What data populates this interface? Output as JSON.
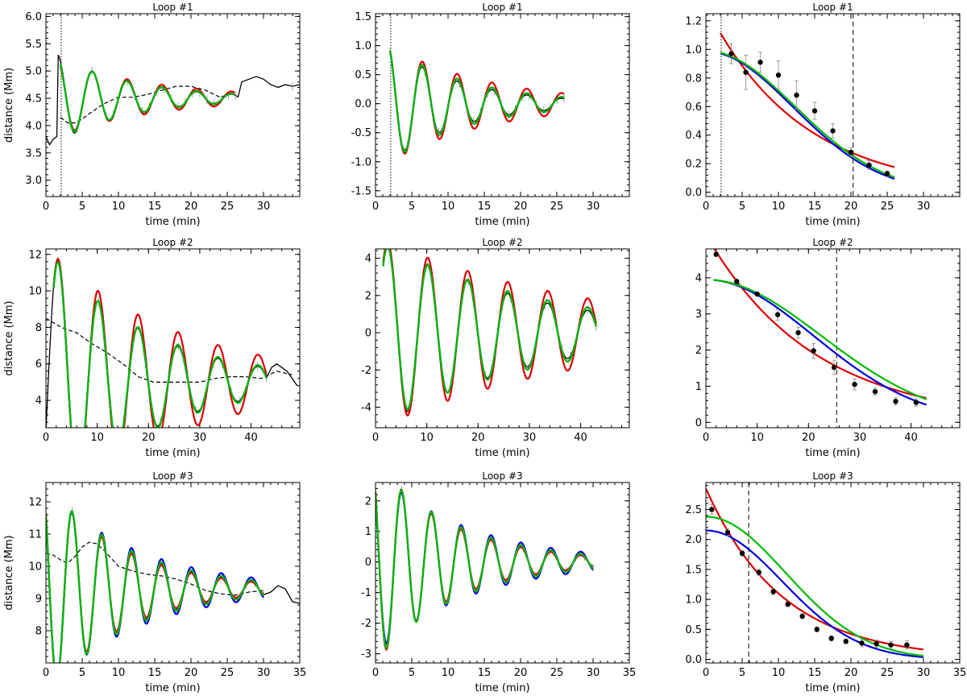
{
  "chart_data": [
    {
      "title": "Loop #1",
      "type": "line",
      "xlabel": "time (min)",
      "ylabel": "distance (Mm)",
      "xlim": [
        0,
        35
      ],
      "ylim": [
        2.7,
        6.05
      ],
      "xticks": [
        0,
        5,
        10,
        15,
        20,
        25,
        30
      ],
      "yticks": [
        3.0,
        3.5,
        4.0,
        4.5,
        5.0,
        5.5,
        6.0
      ],
      "ytickfmt": 1,
      "ref": {
        "x": 2.1,
        "style": "dotted"
      },
      "background": {
        "x": [
          2,
          3,
          4,
          5,
          6,
          8,
          10,
          12,
          14,
          16,
          18,
          20,
          22,
          24,
          26
        ],
        "y": [
          4.15,
          4.05,
          4.05,
          4.12,
          4.22,
          4.4,
          4.52,
          4.52,
          4.57,
          4.65,
          4.72,
          4.72,
          4.65,
          4.52,
          4.6
        ]
      },
      "series": [
        {
          "name": "red fit",
          "color": "#dd0000",
          "kind": "osc",
          "x": [
            2,
            26
          ],
          "y0": 4.5,
          "A0": 0.78,
          "P": 4.8,
          "tau": 14,
          "phi": -2.1
        },
        {
          "name": "blue fit",
          "color": "#0000dd",
          "kind": "osc",
          "x": [
            2,
            26
          ],
          "y0": 4.5,
          "A0": 0.88,
          "P": 4.8,
          "tau": 11,
          "phi": -2.1
        },
        {
          "name": "green fit",
          "color": "#00bb00",
          "kind": "osc",
          "x": [
            2,
            26
          ],
          "y0": 4.5,
          "A0": 0.88,
          "P": 4.8,
          "tau": 11,
          "phi": -2.1
        },
        {
          "name": "data",
          "color": "#000000",
          "kind": "osc",
          "x": [
            0,
            35
          ],
          "y0": 4.5,
          "A0": 0.95,
          "P": 4.8,
          "tau": 10,
          "phi": -2.1,
          "pre": [
            [
              0,
              3.8
            ],
            [
              0.5,
              3.65
            ],
            [
              1,
              3.75
            ],
            [
              1.5,
              3.8
            ]
          ],
          "post": [
            [
              27,
              4.8
            ],
            [
              28,
              4.85
            ],
            [
              29,
              4.9
            ],
            [
              30,
              4.85
            ],
            [
              31,
              4.75
            ],
            [
              32,
              4.7
            ],
            [
              33,
              4.75
            ],
            [
              34,
              4.72
            ],
            [
              35,
              4.75
            ]
          ]
        }
      ]
    },
    {
      "title": "Loop #1",
      "type": "line",
      "xlabel": "time (min)",
      "ylabel": "",
      "xlim": [
        0,
        35
      ],
      "ylim": [
        -1.6,
        1.55
      ],
      "xticks": [
        0,
        5,
        10,
        15,
        20,
        25,
        30
      ],
      "yticks": [
        -1.5,
        -1.0,
        -0.5,
        0.0,
        0.5,
        1.0,
        1.5
      ],
      "ytickfmt": 1,
      "ref": {
        "x": 2.1,
        "style": "dotted"
      },
      "series": [
        {
          "name": "red fit",
          "color": "#dd0000",
          "kind": "osc",
          "x": [
            2,
            26
          ],
          "y0": 0,
          "A0": 1.15,
          "P": 4.8,
          "tau": 14,
          "phi": -2.2
        },
        {
          "name": "blue fit",
          "color": "#0000dd",
          "kind": "osc",
          "x": [
            2,
            26
          ],
          "y0": 0,
          "A0": 1.2,
          "P": 4.8,
          "tau": 11,
          "phi": -2.2
        },
        {
          "name": "green fit",
          "color": "#00bb00",
          "kind": "osc",
          "x": [
            2,
            26
          ],
          "y0": 0,
          "A0": 1.2,
          "P": 4.8,
          "tau": 11,
          "phi": -2.2
        },
        {
          "name": "data",
          "color": "#000000",
          "kind": "osc",
          "x": [
            2,
            26
          ],
          "y0": 0,
          "A0": 1.2,
          "P": 4.8,
          "tau": 10,
          "phi": -2.2
        }
      ]
    },
    {
      "title": "Loop #1",
      "type": "scatter",
      "xlabel": "time (min)",
      "ylabel": "",
      "xlim": [
        0,
        35
      ],
      "ylim": [
        -0.03,
        1.25
      ],
      "xticks": [
        0,
        5,
        10,
        15,
        20,
        25,
        30
      ],
      "yticks": [
        0.0,
        0.2,
        0.4,
        0.6,
        0.8,
        1.0,
        1.2
      ],
      "ytickfmt": 1,
      "ref": {
        "x": 20.3,
        "style": "dashed"
      },
      "ref2": {
        "x": 2.1,
        "style": "dotted"
      },
      "points": {
        "x": [
          3.5,
          5.5,
          7.5,
          10,
          12.5,
          15,
          17.5,
          20,
          22.5,
          25
        ],
        "y": [
          0.97,
          0.84,
          0.91,
          0.82,
          0.68,
          0.57,
          0.43,
          0.28,
          0.19,
          0.13
        ],
        "err": [
          0.07,
          0.12,
          0.07,
          0.1,
          0.1,
          0.06,
          0.05,
          0.03,
          0.03,
          0.02
        ]
      },
      "series": [
        {
          "name": "red fit",
          "color": "#dd0000",
          "kind": "exp",
          "x": [
            2,
            26
          ],
          "A": 1.3,
          "tau": 13
        },
        {
          "name": "blue fit",
          "color": "#0000dd",
          "kind": "gauss",
          "x": [
            2,
            26
          ],
          "A": 0.985,
          "sigma": 12,
          "t0": 0
        },
        {
          "name": "green fit",
          "color": "#00bb00",
          "kind": "gauss",
          "x": [
            2,
            26
          ],
          "A": 0.99,
          "sigma": 12.3,
          "t0": 0
        }
      ]
    },
    {
      "title": "Loop #2",
      "type": "line",
      "xlabel": "time (min)",
      "ylabel": "distance (Mm)",
      "xlim": [
        0,
        49.5
      ],
      "ylim": [
        2.5,
        12.3
      ],
      "xticks": [
        0,
        10,
        20,
        30,
        40
      ],
      "yticks": [
        4,
        6,
        8,
        10,
        12
      ],
      "ytickfmt": 0,
      "background": {
        "x": [
          0,
          3,
          6,
          9,
          12,
          15,
          18,
          21,
          24,
          27,
          30,
          33,
          36,
          39,
          42,
          45,
          48
        ],
        "y": [
          8.5,
          8.0,
          7.7,
          7.1,
          6.6,
          6.0,
          5.3,
          5.0,
          5.0,
          5.0,
          5.0,
          5.2,
          5.3,
          5.3,
          5.2,
          5.6,
          5.4
        ]
      },
      "series": [
        {
          "name": "red fit",
          "color": "#dd0000",
          "kind": "osc",
          "x": [
            1.5,
            43
          ],
          "y0": 5,
          "A0": 7.4,
          "P": 7.8,
          "tau": 26,
          "phi": -1.93
        },
        {
          "name": "blue fit",
          "color": "#0000dd",
          "kind": "osc",
          "x": [
            1.5,
            43
          ],
          "y0": 5,
          "A0": 7.4,
          "P": 7.8,
          "tau": 20,
          "phi": -1.93
        },
        {
          "name": "green fit",
          "color": "#00bb00",
          "kind": "osc",
          "x": [
            1.5,
            43
          ],
          "y0": 5,
          "A0": 7.4,
          "P": 7.8,
          "tau": 20,
          "phi": -1.93
        },
        {
          "name": "data",
          "color": "#000000",
          "kind": "osc",
          "x": [
            0,
            43
          ],
          "y0": 5,
          "A0": 7.6,
          "P": 7.8,
          "tau": 19,
          "phi": -1.93,
          "post": [
            [
              44,
              5.8
            ],
            [
              45,
              6.0
            ],
            [
              46,
              5.8
            ],
            [
              47,
              5.6
            ],
            [
              48,
              5.2
            ],
            [
              49,
              4.8
            ]
          ]
        }
      ]
    },
    {
      "title": "Loop #2",
      "type": "line",
      "xlabel": "time (min)",
      "ylabel": "",
      "xlim": [
        0,
        49.5
      ],
      "ylim": [
        -5.1,
        4.5
      ],
      "xticks": [
        0,
        10,
        20,
        30,
        40
      ],
      "yticks": [
        -4,
        -2,
        0,
        2,
        4
      ],
      "ytickfmt": 0,
      "series": [
        {
          "name": "red fit",
          "color": "#dd0000",
          "kind": "osc",
          "x": [
            1.5,
            43
          ],
          "y0": 0,
          "A0": 5.2,
          "P": 7.8,
          "tau": 40,
          "phi": -1.93
        },
        {
          "name": "blue fit",
          "color": "#0000dd",
          "kind": "osc",
          "x": [
            1.5,
            43
          ],
          "y0": 0,
          "A0": 5.0,
          "P": 7.8,
          "tau": 32,
          "phi": -1.93
        },
        {
          "name": "green fit",
          "color": "#00bb00",
          "kind": "osc",
          "x": [
            1.5,
            43
          ],
          "y0": 0,
          "A0": 5.0,
          "P": 7.8,
          "tau": 32,
          "phi": -1.93
        },
        {
          "name": "data",
          "color": "#000000",
          "kind": "osc",
          "x": [
            1.5,
            43
          ],
          "y0": 0,
          "A0": 5.3,
          "P": 7.8,
          "tau": 28,
          "phi": -1.93
        }
      ]
    },
    {
      "title": "Loop #2",
      "type": "scatter",
      "xlabel": "time (min)",
      "ylabel": "",
      "xlim": [
        0,
        49.5
      ],
      "ylim": [
        -0.15,
        4.8
      ],
      "xticks": [
        0,
        10,
        20,
        30,
        40
      ],
      "yticks": [
        0,
        1,
        2,
        3,
        4
      ],
      "ytickfmt": 0,
      "ref": {
        "x": 25.5,
        "style": "dashed"
      },
      "points": {
        "x": [
          2,
          6,
          10,
          14,
          18,
          21,
          25,
          29,
          33,
          37,
          41
        ],
        "y": [
          4.65,
          3.9,
          3.55,
          2.98,
          2.48,
          1.98,
          1.52,
          1.05,
          0.85,
          0.58,
          0.55
        ],
        "err": [
          0.05,
          0.05,
          0.05,
          0.15,
          0.15,
          0.2,
          0.2,
          0.15,
          0.1,
          0.1,
          0.1
        ]
      },
      "series": [
        {
          "name": "red fit",
          "color": "#dd0000",
          "kind": "exp",
          "x": [
            1.5,
            43
          ],
          "A": 5.2,
          "tau": 21
        },
        {
          "name": "blue fit",
          "color": "#0000dd",
          "kind": "gauss",
          "x": [
            1.5,
            43
          ],
          "A": 3.95,
          "sigma": 21,
          "t0": 0
        },
        {
          "name": "green fit",
          "color": "#00bb00",
          "kind": "gauss",
          "x": [
            1.5,
            43
          ],
          "A": 3.95,
          "sigma": 22.5,
          "t0": 0
        }
      ]
    },
    {
      "title": "Loop #3",
      "type": "line",
      "xlabel": "time (min)",
      "ylabel": "distance (Mm)",
      "xlim": [
        0,
        35
      ],
      "ylim": [
        7.0,
        12.6
      ],
      "xticks": [
        0,
        5,
        10,
        15,
        20,
        25,
        30,
        35
      ],
      "yticks": [
        8,
        9,
        10,
        11,
        12
      ],
      "ytickfmt": 0,
      "background": {
        "x": [
          0,
          1,
          2,
          3,
          4,
          5,
          6,
          7,
          8,
          9,
          10,
          12,
          14,
          16,
          18,
          20,
          22,
          24,
          26,
          28,
          30
        ],
        "y": [
          10.4,
          10.35,
          10.2,
          10.1,
          10.3,
          10.6,
          10.75,
          10.7,
          10.5,
          10.25,
          10.0,
          9.85,
          9.75,
          9.7,
          9.6,
          9.45,
          9.25,
          9.15,
          9.1,
          9.2,
          9.25
        ]
      },
      "series": [
        {
          "name": "red fit",
          "color": "#dd0000",
          "kind": "osc",
          "x": [
            0,
            30
          ],
          "y0": 9.3,
          "A0": 3.35,
          "P": 4.12,
          "tau": 10.5,
          "phi": 0.8
        },
        {
          "name": "blue fit",
          "color": "#0000dd",
          "kind": "osc",
          "x": [
            0,
            30
          ],
          "y0": 9.3,
          "A0": 3.15,
          "P": 4.12,
          "tau": 13,
          "phi": 0.8
        },
        {
          "name": "green fit",
          "color": "#00bb00",
          "kind": "osc",
          "x": [
            0,
            30
          ],
          "y0": 9.3,
          "A0": 3.3,
          "P": 4.12,
          "tau": 11.5,
          "phi": 0.8
        },
        {
          "name": "data",
          "color": "#000000",
          "kind": "osc",
          "x": [
            0,
            30
          ],
          "y0": 9.3,
          "A0": 3.35,
          "P": 4.12,
          "tau": 11,
          "phi": 0.8,
          "post": [
            [
              31,
              9.2
            ],
            [
              32,
              9.4
            ],
            [
              33,
              9.3
            ],
            [
              34,
              8.9
            ],
            [
              35,
              8.85
            ]
          ]
        }
      ]
    },
    {
      "title": "Loop #3",
      "type": "line",
      "xlabel": "time (min)",
      "ylabel": "",
      "xlim": [
        0,
        35
      ],
      "ylim": [
        -3.3,
        2.6
      ],
      "xticks": [
        0,
        5,
        10,
        15,
        20,
        25,
        30,
        35
      ],
      "yticks": [
        -3,
        -2,
        -1,
        0,
        1,
        2
      ],
      "ytickfmt": 0,
      "series": [
        {
          "name": "red fit",
          "color": "#dd0000",
          "kind": "osc",
          "x": [
            0,
            30
          ],
          "y0": 0,
          "A0": 3.3,
          "P": 4.12,
          "tau": 10.5,
          "phi": 0.8
        },
        {
          "name": "blue fit",
          "color": "#0000dd",
          "kind": "osc",
          "x": [
            0,
            30
          ],
          "y0": 0,
          "A0": 3.0,
          "P": 4.12,
          "tau": 13,
          "phi": 0.8
        },
        {
          "name": "green fit",
          "color": "#00bb00",
          "kind": "osc",
          "x": [
            0,
            30
          ],
          "y0": 0,
          "A0": 3.2,
          "P": 4.12,
          "tau": 11.5,
          "phi": 0.8
        },
        {
          "name": "data",
          "color": "#000000",
          "kind": "osc",
          "x": [
            0,
            30
          ],
          "y0": 0,
          "A0": 3.3,
          "P": 4.12,
          "tau": 11,
          "phi": 0.8
        }
      ]
    },
    {
      "title": "Loop #3",
      "type": "scatter",
      "xlabel": "time (min)",
      "ylabel": "",
      "xlim": [
        0,
        35
      ],
      "ylim": [
        -0.06,
        2.95
      ],
      "xticks": [
        0,
        5,
        10,
        15,
        20,
        25,
        30,
        35
      ],
      "yticks": [
        0.0,
        0.5,
        1.0,
        1.5,
        2.0,
        2.5
      ],
      "ytickfmt": 1,
      "ref": {
        "x": 5.9,
        "style": "dashed"
      },
      "points": {
        "x": [
          0.8,
          3,
          5,
          7.3,
          9.3,
          11.3,
          13.3,
          15.3,
          17.3,
          19.3,
          21.5,
          23.5,
          25.5,
          27.7
        ],
        "y": [
          2.5,
          2.12,
          1.77,
          1.45,
          1.13,
          0.92,
          0.72,
          0.5,
          0.35,
          0.3,
          0.27,
          0.26,
          0.24,
          0.24
        ],
        "err": [
          0.08,
          0.06,
          0.05,
          0.05,
          0.05,
          0.04,
          0.04,
          0.04,
          0.04,
          0.04,
          0.06,
          0.06,
          0.06,
          0.07
        ]
      },
      "series": [
        {
          "name": "red fit",
          "color": "#dd0000",
          "kind": "exp",
          "x": [
            0,
            30
          ],
          "A": 2.85,
          "tau": 10.5
        },
        {
          "name": "blue fit",
          "color": "#0000dd",
          "kind": "gauss",
          "x": [
            0,
            30
          ],
          "A": 2.15,
          "sigma": 10.5,
          "t0": 0
        },
        {
          "name": "green fit",
          "color": "#00bb00",
          "kind": "gauss",
          "x": [
            0,
            30
          ],
          "A": 2.38,
          "sigma": 11,
          "t0": 0
        }
      ]
    }
  ]
}
